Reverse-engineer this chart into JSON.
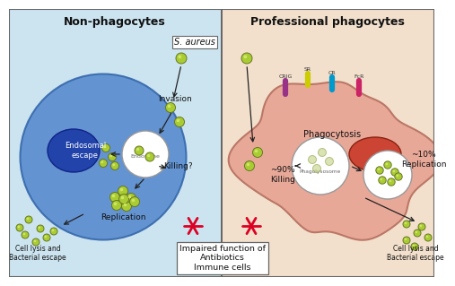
{
  "title_left": "Non-phagocytes",
  "title_right": "Professional phagocytes",
  "bg_left": "#cce4f0",
  "bg_right": "#f2e0cc",
  "border_color": "#666666",
  "cell_left_color": "#5588cc",
  "cell_left_edge": "#3366aa",
  "nucleus_left_color": "#2244aa",
  "nucleus_left_edge": "#112288",
  "endosome_color": "#ffffff",
  "endosome_edge": "#999999",
  "phagocyte_color": "#e8a898",
  "phagocyte_edge": "#bb7766",
  "nucleus_right_color": "#cc4433",
  "nucleus_right_edge": "#882211",
  "phagosome_color": "#ffffff",
  "phagosome_edge": "#999999",
  "bacteria_color": "#aacc33",
  "bacteria_edge": "#667722",
  "bacteria_hi": "#ddf077",
  "text_color": "#111111",
  "red_star_color": "#dd0022",
  "box_color": "#ffffff",
  "box_edge": "#888888",
  "label_saureus": "S. aureus",
  "label_invasion": "Invasion",
  "label_endosomal": "Endosomal\nescape",
  "label_endosome": "Endosome",
  "label_killing_q": "Killing?",
  "label_replication_left": "Replication",
  "label_cell_lysis_left": "Cell lysis and\nBacterial escape",
  "label_phagocytosis": "Phagocytosis",
  "label_90killing": "~90%\nKilling",
  "label_10rep": "~10%\nReplication",
  "label_phagosome": "Phagolysosome",
  "label_cell_lysis_right": "Cell lysis and\nBacterial escape",
  "label_impaired": "Impaired function of\nAntibiotics\nImmune cells",
  "label_crig": "CRIG",
  "label_sr": "SR",
  "label_cr": "CR",
  "label_fcr": "FcR",
  "receptor_colors": [
    "#993388",
    "#cccc00",
    "#0099cc",
    "#cc2266"
  ]
}
